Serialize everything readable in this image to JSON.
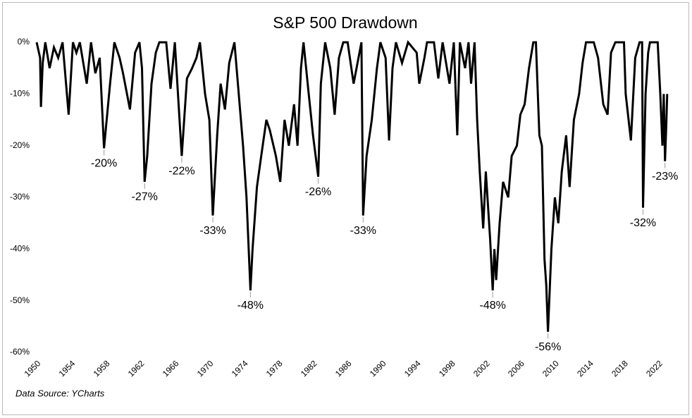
{
  "chart_data": {
    "type": "line",
    "title": "S&P 500 Drawdown",
    "source": "Data Source: YCharts",
    "color": "#000000",
    "xlim": [
      1950,
      2023.1
    ],
    "xticks": [
      1950,
      1954,
      1958,
      1962,
      1966,
      1970,
      1974,
      1978,
      1982,
      1986,
      1990,
      1994,
      1998,
      2002,
      2006,
      2010,
      2014,
      2018,
      2022
    ],
    "ylim": [
      -60,
      0
    ],
    "yticks": [
      {
        "value": 0,
        "label": "0%"
      },
      {
        "value": -10,
        "label": "-10%"
      },
      {
        "value": -20,
        "label": "-20%"
      },
      {
        "value": -30,
        "label": "-30%"
      },
      {
        "value": -40,
        "label": "-40%"
      },
      {
        "value": -50,
        "label": "-50%"
      },
      {
        "value": -60,
        "label": "-60%"
      }
    ],
    "x": [
      1950.0,
      1950.4,
      1950.5,
      1950.7,
      1951.0,
      1951.5,
      1952.0,
      1952.5,
      1953.0,
      1953.7,
      1954.2,
      1954.6,
      1955.0,
      1955.8,
      1956.3,
      1956.8,
      1957.3,
      1957.8,
      1958.5,
      1959.0,
      1959.6,
      1960.0,
      1960.8,
      1961.4,
      1961.9,
      1962.2,
      1962.5,
      1962.8,
      1963.3,
      1963.8,
      1964.2,
      1965.0,
      1965.5,
      1966.0,
      1966.8,
      1967.4,
      1968.0,
      1968.5,
      1968.9,
      1969.5,
      1970.0,
      1970.4,
      1970.9,
      1971.3,
      1971.8,
      1972.3,
      1972.9,
      1973.4,
      1973.9,
      1974.3,
      1974.75,
      1975.0,
      1975.5,
      1976.0,
      1976.6,
      1977.0,
      1977.7,
      1978.2,
      1978.7,
      1979.2,
      1979.8,
      1980.2,
      1980.6,
      1980.9,
      1981.5,
      1982.0,
      1982.6,
      1982.9,
      1983.4,
      1984.0,
      1984.5,
      1985.0,
      1985.5,
      1986.0,
      1986.7,
      1987.6,
      1987.8,
      1988.2,
      1988.8,
      1989.4,
      1989.8,
      1990.4,
      1990.8,
      1991.2,
      1991.6,
      1992.3,
      1993.0,
      1994.0,
      1994.3,
      1994.9,
      1995.2,
      1996.0,
      1996.5,
      1997.0,
      1997.8,
      1998.3,
      1998.7,
      1999.0,
      1999.6,
      2000.0,
      2000.3,
      2000.7,
      2001.0,
      2001.3,
      2001.7,
      2002.0,
      2002.5,
      2002.8,
      2003.0,
      2003.2,
      2003.6,
      2004.0,
      2004.6,
      2005.0,
      2005.6,
      2006.0,
      2006.5,
      2007.0,
      2007.5,
      2007.8,
      2008.2,
      2008.5,
      2008.8,
      2009.0,
      2009.2,
      2009.6,
      2010.0,
      2010.4,
      2010.8,
      2011.3,
      2011.7,
      2012.2,
      2012.8,
      2013.2,
      2013.6,
      2014.5,
      2015.0,
      2015.6,
      2016.1,
      2016.5,
      2017.0,
      2018.0,
      2018.2,
      2018.8,
      2019.3,
      2019.8,
      2020.1,
      2020.2,
      2020.5,
      2020.8,
      2021.0,
      2021.9,
      2022.2,
      2022.45,
      2022.6,
      2022.75,
      2022.9,
      2023.0
    ],
    "values": [
      0,
      -3,
      -12.5,
      -4,
      0,
      -5,
      -1,
      -3,
      0,
      -14,
      0,
      -2,
      0,
      -8,
      0,
      -6,
      -3,
      -20.5,
      -8,
      0,
      -3,
      -6,
      -13,
      -2,
      0,
      -5,
      -27,
      -22,
      -8,
      -2,
      0,
      0,
      -9,
      0,
      -22,
      -7,
      -5,
      -3,
      0,
      -10,
      -15,
      -33.5,
      -18,
      -8,
      -13,
      -4,
      0,
      -10,
      -20,
      -30,
      -48,
      -40,
      -28,
      -22,
      -15,
      -17,
      -22,
      -27,
      -15,
      -20,
      -12,
      -20,
      -5,
      0,
      -10,
      -18,
      -26,
      -8,
      0,
      -5,
      -14,
      -3,
      0,
      0,
      -8,
      0,
      -33.5,
      -22,
      -15,
      -5,
      0,
      -3,
      -19,
      -5,
      0,
      -4,
      0,
      -2,
      -8,
      -3,
      0,
      0,
      -7,
      0,
      -8,
      0,
      -18,
      0,
      -5,
      0,
      -8,
      0,
      -15,
      -25,
      -36,
      -25,
      -38,
      -48,
      -40,
      -46,
      -35,
      -27,
      -30,
      -22,
      -20,
      -14,
      -12,
      -5,
      0,
      0,
      -18,
      -20,
      -42,
      -47,
      -56,
      -40,
      -30,
      -35,
      -25,
      -18,
      -28,
      -15,
      -10,
      -4,
      0,
      0,
      -3,
      -12,
      -14,
      -2,
      0,
      0,
      -10,
      -19,
      -3,
      0,
      0,
      -32,
      -10,
      -2,
      0,
      0,
      -10,
      -20,
      -10,
      -23,
      -16,
      -10
    ],
    "annotations": [
      {
        "x": 1957.8,
        "value": -20.5,
        "label": "-20%"
      },
      {
        "x": 1962.5,
        "value": -27,
        "label": "-27%"
      },
      {
        "x": 1966.8,
        "value": -22,
        "label": "-22%"
      },
      {
        "x": 1970.4,
        "value": -33.5,
        "label": "-33%"
      },
      {
        "x": 1974.75,
        "value": -48,
        "label": "-48%"
      },
      {
        "x": 1982.6,
        "value": -26,
        "label": "-26%"
      },
      {
        "x": 1987.8,
        "value": -33.5,
        "label": "-33%"
      },
      {
        "x": 2002.8,
        "value": -48,
        "label": "-48%"
      },
      {
        "x": 2009.2,
        "value": -56,
        "label": "-56%"
      },
      {
        "x": 2020.2,
        "value": -32,
        "label": "-32%"
      },
      {
        "x": 2022.75,
        "value": -23,
        "label": "-23%"
      }
    ]
  }
}
